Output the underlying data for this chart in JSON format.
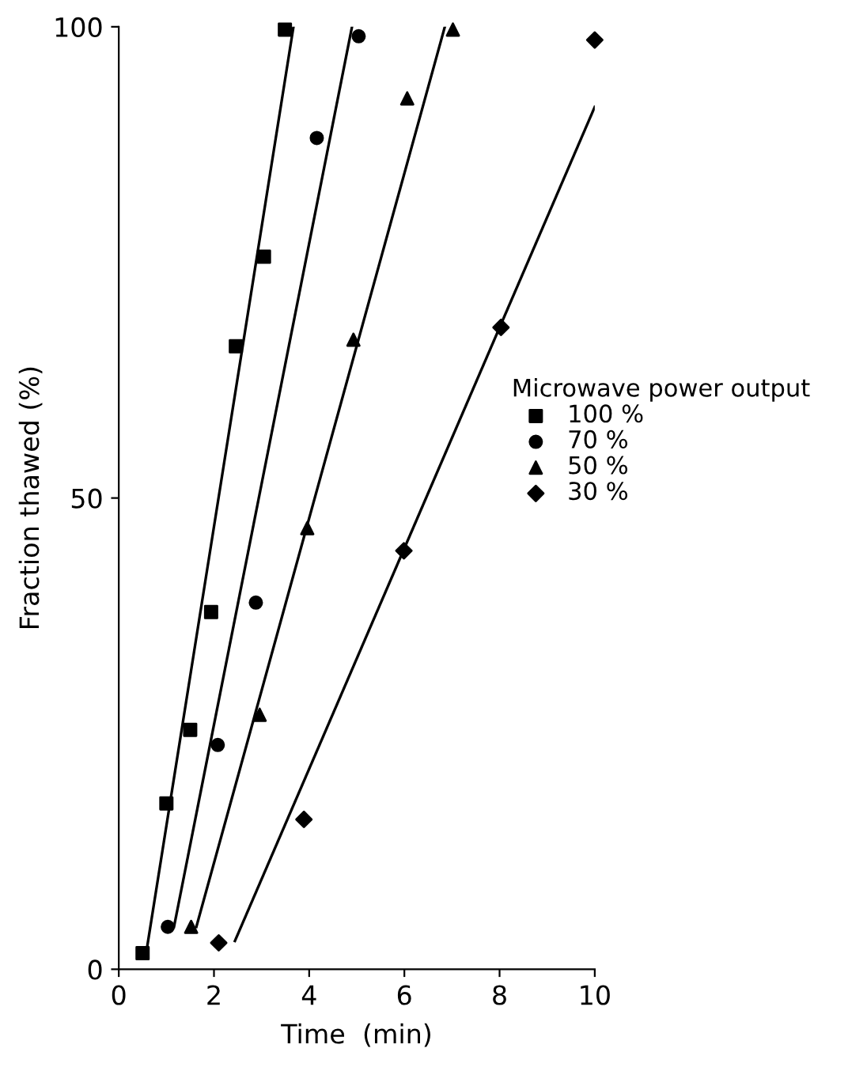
{
  "chart_data": {
    "type": "scatter",
    "xlabel": "Time  (min)",
    "ylabel": "Fraction thawed (%)",
    "legend_title": "Microwave power output",
    "legend": "right",
    "grid": false,
    "xlim": [
      0,
      10
    ],
    "ylim": [
      0,
      100
    ],
    "xticks": [
      0,
      2,
      4,
      6,
      8,
      10
    ],
    "yticks": [
      0,
      50,
      100
    ],
    "series": [
      {
        "name": "100 %",
        "color": "#000000",
        "marker": "square",
        "x": [
          0.5,
          1.0,
          1.5,
          1.94,
          2.46,
          3.05,
          3.49
        ],
        "values": [
          1.7,
          17.6,
          25.4,
          37.9,
          66.1,
          75.6,
          99.7
        ]
      },
      {
        "name": "70 %",
        "color": "#000000",
        "marker": "circle",
        "x": [
          1.03,
          2.08,
          2.88,
          4.16,
          5.04
        ],
        "values": [
          4.5,
          23.8,
          38.9,
          88.2,
          99.0
        ]
      },
      {
        "name": "50 %",
        "color": "#000000",
        "marker": "triangle",
        "x": [
          1.52,
          2.96,
          3.96,
          4.93,
          6.06,
          7.02
        ],
        "values": [
          4.5,
          27.0,
          46.8,
          66.8,
          92.4,
          99.7
        ]
      },
      {
        "name": "30 %",
        "color": "#000000",
        "marker": "diamond",
        "x": [
          2.1,
          3.89,
          5.99,
          8.03,
          10.0
        ],
        "values": [
          2.8,
          15.9,
          44.4,
          68.1,
          98.6
        ]
      },
      {
        "type": "line",
        "color": "#000000",
        "marker": "none",
        "x": [
          0.6,
          3.67
        ],
        "values": [
          2.5,
          100
        ]
      },
      {
        "type": "line",
        "color": "#000000",
        "marker": "none",
        "x": [
          1.16,
          4.9
        ],
        "values": [
          4.5,
          100
        ]
      },
      {
        "type": "line",
        "color": "#000000",
        "marker": "none",
        "x": [
          1.63,
          6.85
        ],
        "values": [
          4.5,
          100
        ]
      },
      {
        "type": "line",
        "color": "#000000",
        "marker": "none",
        "x": [
          2.44,
          10.0
        ],
        "values": [
          3.0,
          91.5
        ]
      }
    ]
  }
}
